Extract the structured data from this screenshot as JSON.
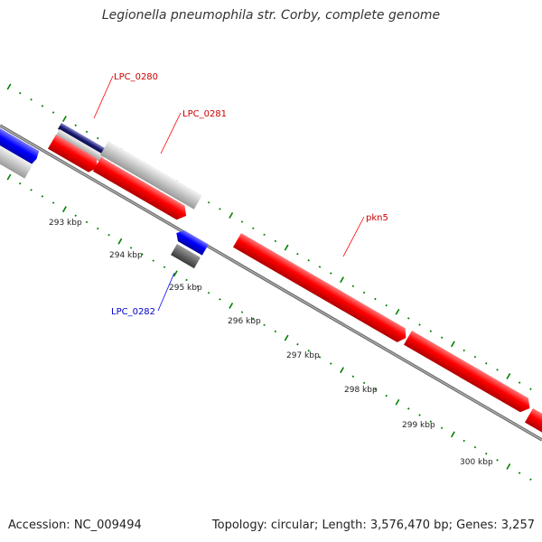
{
  "title": "Legionella pneumophila str. Corby, complete genome",
  "footer": {
    "accession": "Accession: NC_009494",
    "summary": "Topology: circular; Length: 3,576,470 bp; Genes: 3,257"
  },
  "colors": {
    "forward_cds": "#ff0000",
    "reverse_cds": "#0000ff",
    "other_feature": "#c0c0c0",
    "backbone": "#808080",
    "tick": "#008000",
    "label_forward": "#cc0000",
    "label_reverse": "#0000cc"
  },
  "scale_labels": [
    "293 kbp",
    "294 kbp",
    "295 kbp",
    "296 kbp",
    "297 kbp",
    "298 kbp",
    "299 kbp",
    "300 kbp"
  ],
  "gene_labels": [
    {
      "text": "LPC_0280",
      "strand": "forward"
    },
    {
      "text": "LPC_0281",
      "strand": "forward"
    },
    {
      "text": "pkn5",
      "strand": "forward"
    },
    {
      "text": "LPC_0282",
      "strand": "reverse"
    }
  ]
}
